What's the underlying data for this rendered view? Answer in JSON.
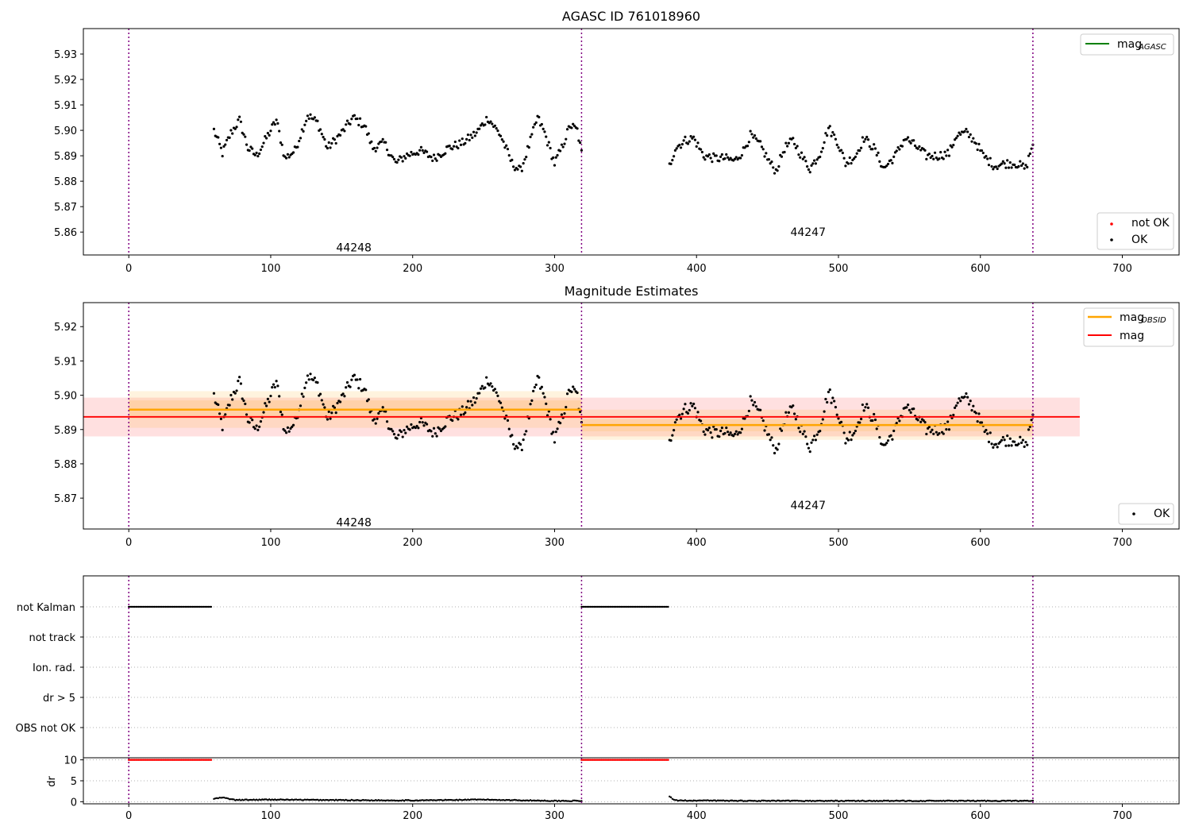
{
  "chart_data": [
    {
      "type": "scatter",
      "title": "AGASC ID 761018960",
      "xlim": [
        -32,
        740
      ],
      "ylim": [
        5.851,
        5.94
      ],
      "xticks": [
        0,
        100,
        200,
        300,
        400,
        500,
        600,
        700
      ],
      "yticks": [
        5.86,
        5.87,
        5.88,
        5.89,
        5.9,
        5.91,
        5.92,
        5.93
      ],
      "vlines": [
        0,
        319,
        637
      ],
      "obsid_labels": [
        {
          "text": "44248",
          "x": 159,
          "y": 5.854
        },
        {
          "text": "44247",
          "x": 479,
          "y": 5.86
        }
      ],
      "legend_top": {
        "location": "upper right",
        "entries": [
          {
            "label": "mag",
            "sub": "AGASC",
            "color": "#008000",
            "kind": "line"
          }
        ]
      },
      "legend_bottom": {
        "location": "lower right",
        "entries": [
          {
            "label": "not OK",
            "color": "#ff0000",
            "kind": "dot"
          },
          {
            "label": "OK",
            "color": "#000000",
            "kind": "dot"
          }
        ]
      },
      "series": [
        {
          "name": "OK",
          "color": "#000000",
          "segments": [
            {
              "x_start": 60,
              "x_end": 319,
              "keypoints": [
                [
                  60,
                  5.9
                ],
                [
                  66,
                  5.891
                ],
                [
                  72,
                  5.899
                ],
                [
                  78,
                  5.904
                ],
                [
                  84,
                  5.893
                ],
                [
                  90,
                  5.89
                ],
                [
                  97,
                  5.897
                ],
                [
                  104,
                  5.904
                ],
                [
                  110,
                  5.889
                ],
                [
                  117,
                  5.892
                ],
                [
                  126,
                  5.906
                ],
                [
                  133,
                  5.903
                ],
                [
                  140,
                  5.893
                ],
                [
                  150,
                  5.899
                ],
                [
                  158,
                  5.905
                ],
                [
                  166,
                  5.902
                ],
                [
                  172,
                  5.893
                ],
                [
                  180,
                  5.895
                ],
                [
                  188,
                  5.887
                ],
                [
                  195,
                  5.89
                ],
                [
                  205,
                  5.892
                ],
                [
                  215,
                  5.889
                ],
                [
                  225,
                  5.893
                ],
                [
                  235,
                  5.895
                ],
                [
                  245,
                  5.899
                ],
                [
                  253,
                  5.905
                ],
                [
                  262,
                  5.898
                ],
                [
                  270,
                  5.887
                ],
                [
                  276,
                  5.884
                ],
                [
                  282,
                  5.894
                ],
                [
                  288,
                  5.905
                ],
                [
                  293,
                  5.899
                ],
                [
                  300,
                  5.887
                ],
                [
                  305,
                  5.893
                ],
                [
                  311,
                  5.902
                ],
                [
                  316,
                  5.9
                ],
                [
                  319,
                  5.891
                ]
              ]
            },
            {
              "x_start": 381,
              "x_end": 637,
              "keypoints": [
                [
                  381,
                  5.886
                ],
                [
                  385,
                  5.893
                ],
                [
                  392,
                  5.896
                ],
                [
                  398,
                  5.897
                ],
                [
                  405,
                  5.89
                ],
                [
                  413,
                  5.889
                ],
                [
                  420,
                  5.889
                ],
                [
                  427,
                  5.888
                ],
                [
                  433,
                  5.892
                ],
                [
                  438,
                  5.898
                ],
                [
                  445,
                  5.894
                ],
                [
                  452,
                  5.887
                ],
                [
                  456,
                  5.884
                ],
                [
                  462,
                  5.893
                ],
                [
                  468,
                  5.896
                ],
                [
                  475,
                  5.889
                ],
                [
                  480,
                  5.885
                ],
                [
                  487,
                  5.891
                ],
                [
                  493,
                  5.901
                ],
                [
                  499,
                  5.896
                ],
                [
                  505,
                  5.887
                ],
                [
                  512,
                  5.89
                ],
                [
                  518,
                  5.897
                ],
                [
                  525,
                  5.893
                ],
                [
                  532,
                  5.885
                ],
                [
                  540,
                  5.89
                ],
                [
                  547,
                  5.897
                ],
                [
                  554,
                  5.894
                ],
                [
                  562,
                  5.89
                ],
                [
                  570,
                  5.89
                ],
                [
                  578,
                  5.891
                ],
                [
                  583,
                  5.898
                ],
                [
                  590,
                  5.899
                ],
                [
                  596,
                  5.896
                ],
                [
                  602,
                  5.89
                ],
                [
                  610,
                  5.886
                ],
                [
                  618,
                  5.887
                ],
                [
                  625,
                  5.887
                ],
                [
                  632,
                  5.885
                ],
                [
                  637,
                  5.895
                ]
              ]
            }
          ]
        }
      ]
    },
    {
      "type": "scatter",
      "title": "Magnitude Estimates",
      "xlim": [
        -32,
        740
      ],
      "ylim": [
        5.861,
        5.927
      ],
      "xticks": [
        0,
        100,
        200,
        300,
        400,
        500,
        600,
        700
      ],
      "yticks": [
        5.87,
        5.88,
        5.89,
        5.9,
        5.91,
        5.92
      ],
      "vlines": [
        0,
        319,
        637
      ],
      "obsid_labels": [
        {
          "text": "44248",
          "x": 159,
          "y": 5.863
        },
        {
          "text": "44247",
          "x": 479,
          "y": 5.868
        }
      ],
      "bands": [
        {
          "x": [
            -32,
            670
          ],
          "y_low": 5.888,
          "y_high": 5.8993,
          "color": "#ff0000",
          "opacity": 0.12
        },
        {
          "x": [
            0,
            319
          ],
          "y_low": 5.8905,
          "y_high": 5.9012,
          "color": "#ffa500",
          "opacity": 0.13
        },
        {
          "x": [
            0,
            319
          ],
          "y_low": 5.8932,
          "y_high": 5.8985,
          "color": "#ffa500",
          "opacity": 0.13
        },
        {
          "x": [
            319,
            637
          ],
          "y_low": 5.887,
          "y_high": 5.8958,
          "color": "#ffa500",
          "opacity": 0.13
        },
        {
          "x": [
            319,
            637
          ],
          "y_low": 5.8895,
          "y_high": 5.893,
          "color": "#ffa500",
          "opacity": 0.13
        }
      ],
      "hlines": [
        {
          "name": "mag",
          "y": 5.8937,
          "x": [
            -32,
            670
          ],
          "color": "#ff0000"
        },
        {
          "name": "mag OBSID",
          "y": 5.8958,
          "x": [
            0,
            319
          ],
          "color": "#ffa500"
        },
        {
          "name": "mag OBSID",
          "y": 5.8913,
          "x": [
            319,
            637
          ],
          "color": "#ffa500"
        }
      ],
      "legend_top": {
        "location": "upper right",
        "entries": [
          {
            "label": "mag",
            "sub": "OBSID",
            "color": "#ffa500",
            "kind": "line"
          },
          {
            "label": "mag",
            "color": "#ff0000",
            "kind": "line"
          }
        ]
      },
      "legend_bottom": {
        "location": "lower right",
        "entries": [
          {
            "label": "OK",
            "color": "#000000",
            "kind": "dot"
          }
        ]
      }
    },
    {
      "type": "scatter",
      "xlim": [
        -32,
        740
      ],
      "flag_rows": [
        "not Kalman",
        "not track",
        "Ion. rad.",
        "dr > 5",
        "OBS not OK"
      ],
      "flag_segments": [
        {
          "row": "not Kalman",
          "x": [
            0,
            58
          ]
        },
        {
          "row": "not Kalman",
          "x": [
            319,
            380
          ]
        }
      ],
      "vlines": [
        0,
        319,
        637
      ]
    },
    {
      "type": "scatter",
      "xlim": [
        -32,
        740
      ],
      "ylim": [
        -0.5,
        10.5
      ],
      "ylabel": "dr",
      "yticks": [
        0,
        5,
        10
      ],
      "xticks": [
        0,
        100,
        200,
        300,
        400,
        500,
        600,
        700
      ],
      "vlines": [
        0,
        319,
        637
      ],
      "capped": {
        "value": 10,
        "color": "#ff0000",
        "segments": [
          [
            0,
            58
          ],
          [
            319,
            380
          ]
        ]
      },
      "dr_points": {
        "color": "#000000",
        "segments": [
          {
            "x_start": 60,
            "x_end": 319,
            "keypoints": [
              [
                60,
                0.7
              ],
              [
                66,
                1.0
              ],
              [
                75,
                0.4
              ],
              [
                100,
                0.5
              ],
              [
                140,
                0.4
              ],
              [
                200,
                0.3
              ],
              [
                250,
                0.5
              ],
              [
                300,
                0.2
              ],
              [
                319,
                0.2
              ]
            ]
          },
          {
            "x_start": 381,
            "x_end": 637,
            "keypoints": [
              [
                381,
                1.2
              ],
              [
                385,
                0.3
              ],
              [
                450,
                0.2
              ],
              [
                520,
                0.2
              ],
              [
                580,
                0.2
              ],
              [
                637,
                0.2
              ]
            ]
          }
        ]
      }
    }
  ]
}
